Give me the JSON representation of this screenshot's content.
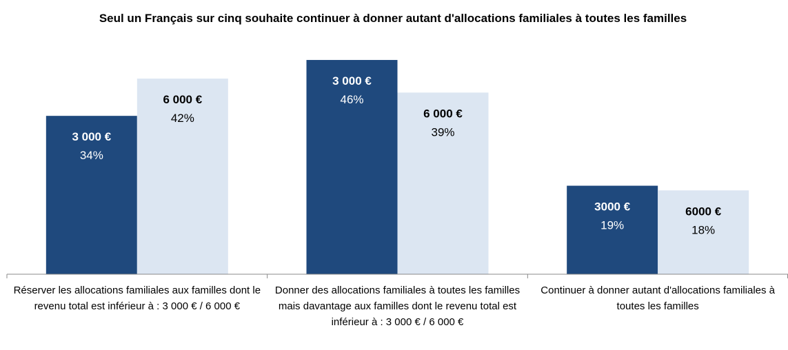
{
  "chart_data": {
    "type": "bar",
    "title": "Seul un Français sur cinq souhaite continuer à donner autant d'allocations familiales à toutes les familles",
    "categories": [
      "Réserver les allocations familiales aux familles dont le revenu total est inférieur à : 3 000 € / 6 000 €",
      "Donner des allocations familiales à toutes les familles mais davantage aux familles dont le revenu total est inférieur à : 3 000 € / 6 000 €",
      "Continuer à donner autant d'allocations familiales à toutes les familles"
    ],
    "series": [
      {
        "color": "#1f497d",
        "label_color": "#ffffff",
        "labels": [
          "3 000 €",
          "3 000 €",
          "3000 €"
        ],
        "values": [
          34,
          46,
          19
        ],
        "value_labels": [
          "34%",
          "46%",
          "19%"
        ]
      },
      {
        "color": "#dce6f2",
        "label_color": "#000000",
        "labels": [
          "6 000 €",
          "6 000 €",
          "6000 €"
        ],
        "values": [
          42,
          39,
          18
        ],
        "value_labels": [
          "42%",
          "39%",
          "18%"
        ]
      }
    ],
    "ylim": [
      0,
      50
    ]
  }
}
